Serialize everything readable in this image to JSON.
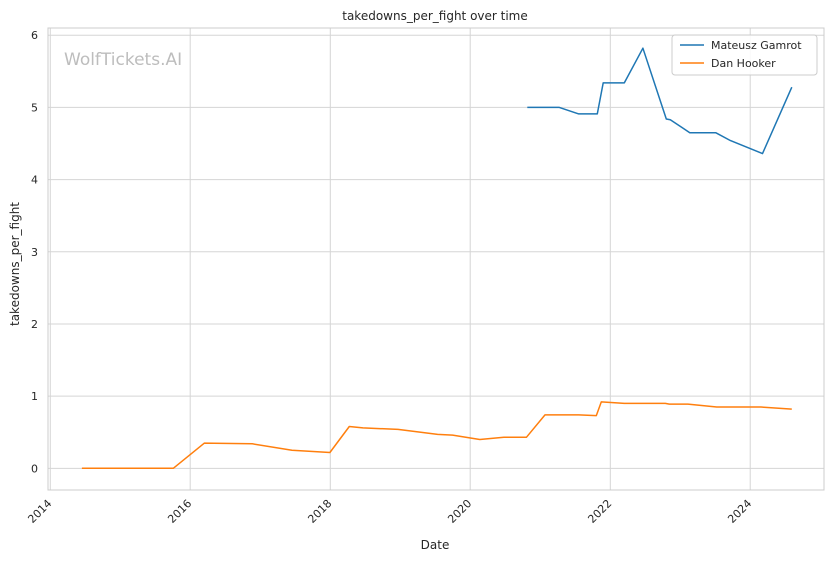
{
  "chart_data": {
    "type": "line",
    "title": "takedowns_per_fight over time",
    "xlabel": "Date",
    "ylabel": "takedowns_per_fight",
    "watermark": "WolfTickets.AI",
    "xlim": [
      "2013-12-20",
      "2025-01-20"
    ],
    "ylim": [
      -0.3,
      6.1
    ],
    "x_ticks": [
      "2014",
      "2016",
      "2018",
      "2020",
      "2022",
      "2024"
    ],
    "y_ticks": [
      "0",
      "1",
      "2",
      "3",
      "4",
      "5",
      "6"
    ],
    "grid": true,
    "legend_position": "top-right",
    "series": [
      {
        "name": "Mateusz Gamrot",
        "color": "#1f77b4",
        "points": [
          [
            "2020-10-25",
            5.0
          ],
          [
            "2021-04-10",
            5.0
          ],
          [
            "2021-07-20",
            4.91
          ],
          [
            "2021-10-25",
            4.91
          ],
          [
            "2021-11-25",
            5.34
          ],
          [
            "2022-03-15",
            5.34
          ],
          [
            "2022-06-20",
            5.82
          ],
          [
            "2022-10-20",
            4.84
          ],
          [
            "2022-11-10",
            4.83
          ],
          [
            "2023-02-20",
            4.65
          ],
          [
            "2023-07-05",
            4.65
          ],
          [
            "2023-09-20",
            4.54
          ],
          [
            "2024-03-05",
            4.36
          ],
          [
            "2024-08-05",
            5.28
          ]
        ]
      },
      {
        "name": "Dan Hooker",
        "color": "#ff7f0e",
        "points": [
          [
            "2014-06-15",
            0.0
          ],
          [
            "2015-10-05",
            0.0
          ],
          [
            "2016-03-15",
            0.35
          ],
          [
            "2016-11-20",
            0.34
          ],
          [
            "2017-06-15",
            0.25
          ],
          [
            "2017-12-30",
            0.22
          ],
          [
            "2018-04-10",
            0.58
          ],
          [
            "2018-06-20",
            0.56
          ],
          [
            "2018-12-20",
            0.54
          ],
          [
            "2019-07-15",
            0.47
          ],
          [
            "2019-10-01",
            0.46
          ],
          [
            "2020-02-20",
            0.4
          ],
          [
            "2020-06-25",
            0.43
          ],
          [
            "2020-10-20",
            0.43
          ],
          [
            "2021-01-25",
            0.74
          ],
          [
            "2021-07-20",
            0.74
          ],
          [
            "2021-10-20",
            0.73
          ],
          [
            "2021-11-15",
            0.92
          ],
          [
            "2022-03-15",
            0.9
          ],
          [
            "2022-10-15",
            0.9
          ],
          [
            "2022-11-05",
            0.89
          ],
          [
            "2023-02-10",
            0.89
          ],
          [
            "2023-07-10",
            0.85
          ],
          [
            "2024-02-25",
            0.85
          ],
          [
            "2024-08-05",
            0.82
          ]
        ]
      }
    ]
  }
}
